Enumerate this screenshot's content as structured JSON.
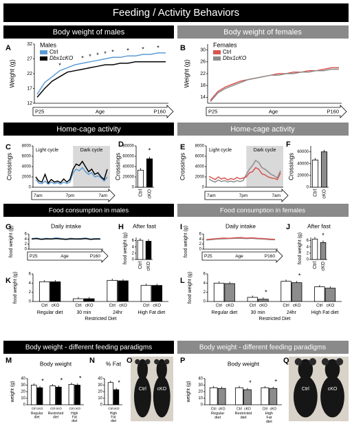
{
  "title": "Feeding / Activity Behaviors",
  "sections": [
    {
      "left": "Body weight of males",
      "right": "Body weight of females"
    },
    {
      "left": "Home-cage activity",
      "right": "Home-cage activity"
    },
    {
      "left": "Food consumption in males",
      "right": "Food consumption in females"
    },
    {
      "left": "Body weight - different feeding paradigms",
      "right": "Body weight - different feeding paradigms"
    }
  ],
  "chart_data": [
    {
      "type": "line",
      "panel": "A",
      "ylabel": "Weight (g)",
      "ylim": [
        12,
        32
      ],
      "yticks": [
        12,
        17,
        22,
        27,
        32
      ],
      "legend_title": "Males",
      "x_labels": [
        "P25",
        "Age",
        "P160"
      ],
      "series": [
        {
          "name": "Ctrl",
          "color": "#5b9bd5",
          "values": [
            15,
            19,
            21,
            23,
            24,
            25,
            25.5,
            26,
            26.5,
            27,
            27.5,
            27.5,
            28,
            28,
            28.5,
            28.5,
            29,
            29
          ]
        },
        {
          "name": "Dbx1cKO",
          "color": "#000000",
          "values": [
            14,
            17,
            19.5,
            21,
            22.5,
            23,
            23.5,
            24,
            24.5,
            25,
            25,
            25.5,
            25.5,
            26,
            26,
            26,
            26,
            26
          ]
        }
      ],
      "sig": {
        "label": "*",
        "at": [
          3,
          6,
          7,
          8,
          9,
          10,
          12,
          14,
          16
        ]
      }
    },
    {
      "type": "line",
      "panel": "B",
      "ylabel": "Weight (g)",
      "ylim": [
        12,
        32
      ],
      "yticks": [
        14,
        18,
        22,
        26,
        30
      ],
      "legend_title": "Females",
      "x_labels": [
        "P25",
        "Age",
        "P160"
      ],
      "series": [
        {
          "name": "Ctrl",
          "color": "#d9534f",
          "values": [
            13,
            16,
            17.5,
            18.5,
            19.5,
            20,
            20.5,
            21,
            21.5,
            22,
            22,
            22.5,
            22.5,
            23,
            23,
            23.5,
            24,
            24
          ]
        },
        {
          "name": "Dbx1cKO",
          "color": "#8c8c8c",
          "values": [
            12.5,
            15.5,
            17,
            18,
            19,
            20,
            20.5,
            21,
            21.5,
            21.5,
            22,
            22,
            22.5,
            22.5,
            23,
            23,
            23.5,
            23.5
          ]
        }
      ]
    },
    {
      "type": "line",
      "panel": "C",
      "ylabel": "Crossings",
      "ylim": [
        0,
        8000
      ],
      "yticks": [
        0,
        2000,
        4000,
        6000,
        8000
      ],
      "x_labels": [
        "7am",
        "7pm",
        "7am"
      ],
      "shade": {
        "from": 12,
        "labels": [
          "Light cycle",
          "Dark cycle"
        ]
      },
      "series": [
        {
          "color": "#5b9bd5",
          "values": [
            1500,
            800,
            700,
            1200,
            600,
            1000,
            700,
            900,
            600,
            1000,
            700,
            1000,
            2800,
            3500,
            3200,
            3800,
            3000,
            2500,
            2800,
            2000,
            2200,
            1800,
            1200,
            2000
          ]
        },
        {
          "color": "#000000",
          "values": [
            2000,
            1200,
            1000,
            2500,
            800,
            1500,
            1000,
            1200,
            900,
            1600,
            1000,
            1500,
            3500,
            4500,
            4200,
            5000,
            4000,
            3000,
            3500,
            2500,
            2800,
            2000,
            1500,
            3500
          ]
        }
      ]
    },
    {
      "type": "bar",
      "panel": "D",
      "ylabel": "Crossings",
      "ylim": [
        0,
        80000
      ],
      "yticks": [
        0,
        20000,
        40000,
        60000,
        80000
      ],
      "categories": [
        "Ctrl",
        "cKO"
      ],
      "values": [
        33000,
        55000
      ],
      "colors": [
        "#ffffff",
        "#000000"
      ],
      "sig": {
        "label": "*",
        "at": [
          1
        ]
      }
    },
    {
      "type": "line",
      "panel": "E",
      "ylabel": "Crossings",
      "ylim": [
        0,
        8000
      ],
      "yticks": [
        0,
        2000,
        4000,
        6000,
        8000
      ],
      "x_labels": [
        "7am",
        "7pm",
        "7am"
      ],
      "shade": {
        "from": 12,
        "labels": [
          "Light cycle",
          "Dark cycle"
        ]
      },
      "series": [
        {
          "color": "#8c8c8c",
          "values": [
            1600,
            1200,
            1000,
            1400,
            1100,
            1300,
            1000,
            1200,
            1000,
            1300,
            1100,
            1300,
            2500,
            3500,
            4200,
            5200,
            4800,
            3800,
            3500,
            3000,
            2500,
            2200,
            1800,
            3200
          ]
        },
        {
          "color": "#d9534f",
          "values": [
            2100,
            1800,
            1500,
            2000,
            1600,
            1800,
            1400,
            1700,
            1500,
            1900,
            1600,
            1800,
            2000,
            2800,
            3000,
            3800,
            3500,
            2600,
            2400,
            2000,
            1800,
            1700,
            1500,
            2800
          ]
        }
      ]
    },
    {
      "type": "bar",
      "panel": "F",
      "ylabel": "Crossings",
      "ylim": [
        0,
        70000
      ],
      "yticks": [
        0,
        20000,
        40000,
        60000
      ],
      "categories": [
        "Ctrl",
        "cKO"
      ],
      "values": [
        46000,
        60000
      ],
      "colors": [
        "#ffffff",
        "#8c8c8c"
      ]
    },
    {
      "type": "line",
      "panel": "G",
      "title": "Daily intake",
      "ylabel": "food weight (g)",
      "ylim": [
        0,
        6
      ],
      "yticks": [
        0,
        2,
        4,
        6
      ],
      "x_labels": [
        "P25",
        "Age",
        "P160"
      ],
      "series": [
        {
          "color": "#5b9bd5",
          "values": [
            4.2,
            4.4,
            4.0,
            4.3,
            4.1,
            4.5,
            4.2,
            4.0,
            4.3,
            4.1,
            4.2,
            4.4,
            4.0,
            4.2,
            4.1
          ]
        },
        {
          "color": "#000000",
          "values": [
            4.0,
            4.2,
            3.9,
            4.1,
            4.0,
            4.2,
            4.0,
            3.9,
            4.1,
            4.0,
            4.0,
            4.2,
            3.9,
            4.0,
            4.0
          ]
        }
      ]
    },
    {
      "type": "bar",
      "panel": "H",
      "title": "After fast",
      "ylabel": "food weight (g)",
      "ylim": [
        0,
        7
      ],
      "yticks": [
        0,
        2,
        4,
        6
      ],
      "categories": [
        "Ctrl",
        "cKO"
      ],
      "values": [
        6.1,
        5.8
      ],
      "colors": [
        "#ffffff",
        "#000000"
      ]
    },
    {
      "type": "line",
      "panel": "I",
      "title": "Daily intake",
      "ylabel": "food weight (g)",
      "ylim": [
        0,
        6
      ],
      "yticks": [
        0,
        2,
        4,
        6
      ],
      "x_labels": [
        "P25",
        "Age",
        "P160"
      ],
      "series": [
        {
          "color": "#8c8c8c",
          "values": [
            3.6,
            3.8,
            4.0,
            4.1,
            4.2,
            4.3,
            4.3,
            4.2,
            4.3,
            4.1,
            4.0,
            3.8,
            3.7
          ]
        },
        {
          "color": "#d9534f",
          "values": [
            3.8,
            4.0,
            4.2,
            4.4,
            4.3,
            4.5,
            4.6,
            4.4,
            4.5,
            4.3,
            4.2,
            4.0,
            3.9
          ]
        }
      ]
    },
    {
      "type": "bar",
      "panel": "J",
      "title": "After fast",
      "ylabel": "food weight (g)",
      "ylim": [
        0,
        7
      ],
      "yticks": [
        0,
        2,
        4,
        6
      ],
      "categories": [
        "Ctrl",
        "cKO"
      ],
      "values": [
        6.5,
        5.4
      ],
      "colors": [
        "#ffffff",
        "#8c8c8c"
      ],
      "sig": {
        "label": "*",
        "at": [
          1
        ]
      }
    },
    {
      "type": "bar",
      "panel": "K",
      "ylabel": "food weight (g)",
      "ylim": [
        0,
        6
      ],
      "yticks": [
        0,
        2,
        4,
        6
      ],
      "categories": [
        "Regular diet",
        "30 min",
        "24hr",
        "High Fat diet"
      ],
      "span": {
        "label": "Restricted Diet",
        "from": 1,
        "to": 2
      },
      "series": [
        {
          "name": "Ctrl",
          "color": "#ffffff",
          "values": [
            4.3,
            0.6,
            4.6,
            3.5
          ]
        },
        {
          "name": "cKO",
          "color": "#000000",
          "values": [
            4.3,
            0.6,
            4.5,
            3.5
          ]
        }
      ]
    },
    {
      "type": "bar",
      "panel": "L",
      "ylabel": "food weight (g)",
      "ylim": [
        0,
        6
      ],
      "yticks": [
        0,
        2,
        4,
        6
      ],
      "categories": [
        "Regular diet",
        "30 min",
        "24hr",
        "High Fat diet"
      ],
      "span": {
        "label": "Restricted Diet",
        "from": 1,
        "to": 2
      },
      "series": [
        {
          "name": "Ctrl",
          "color": "#ffffff",
          "values": [
            4.0,
            0.9,
            4.4,
            3.2
          ]
        },
        {
          "name": "cKO",
          "color": "#8c8c8c",
          "values": [
            3.9,
            0.5,
            4.1,
            2.9
          ]
        }
      ],
      "sig": {
        "label": "*",
        "at": [
          1,
          2
        ]
      }
    },
    {
      "type": "bar",
      "panel": "M",
      "title": "Body weight",
      "ylabel": "weight (g)",
      "ylim": [
        0,
        40
      ],
      "yticks": [
        0,
        10,
        20,
        30,
        40
      ],
      "categories": [
        "Regular diet",
        "Restricted diet",
        "High Fat diet"
      ],
      "wrap": true,
      "series": [
        {
          "name": "Ctrl",
          "color": "#ffffff",
          "values": [
            30,
            29,
            31
          ]
        },
        {
          "name": "cKO",
          "color": "#000000",
          "values": [
            26,
            27,
            30
          ]
        }
      ],
      "sig": {
        "label": "*",
        "at": [
          0,
          1,
          2
        ]
      }
    },
    {
      "type": "bar",
      "panel": "N",
      "title": "% Fat",
      "ylim": [
        0,
        40
      ],
      "yticks": [
        0,
        10,
        20,
        30,
        40
      ],
      "categories": [
        "High Fat diet"
      ],
      "wrap": true,
      "series": [
        {
          "name": "Ctrl",
          "color": "#ffffff",
          "values": [
            34
          ]
        },
        {
          "name": "cKO",
          "color": "#000000",
          "values": [
            23
          ]
        }
      ],
      "sig": {
        "label": "*",
        "at": [
          0
        ]
      }
    },
    {
      "type": "bar",
      "panel": "P",
      "title": "Body weight",
      "ylabel": "weight (g)",
      "ylim": [
        0,
        40
      ],
      "yticks": [
        0,
        10,
        20,
        30,
        40
      ],
      "categories": [
        "Regular diet",
        "Restricted diet",
        "High Fat diet"
      ],
      "wrap": true,
      "series": [
        {
          "name": "Ctrl",
          "color": "#ffffff",
          "values": [
            26,
            26,
            26
          ]
        },
        {
          "name": "cKO",
          "color": "#8c8c8c",
          "values": [
            25,
            23,
            25
          ]
        }
      ],
      "sig": {
        "label": "*",
        "at": [
          1,
          2
        ]
      }
    }
  ],
  "photos": [
    {
      "panel": "O",
      "labels": [
        "Ctrl",
        "cKO"
      ]
    },
    {
      "panel": "Q",
      "labels": [
        "Ctrl",
        "cKO"
      ]
    }
  ]
}
